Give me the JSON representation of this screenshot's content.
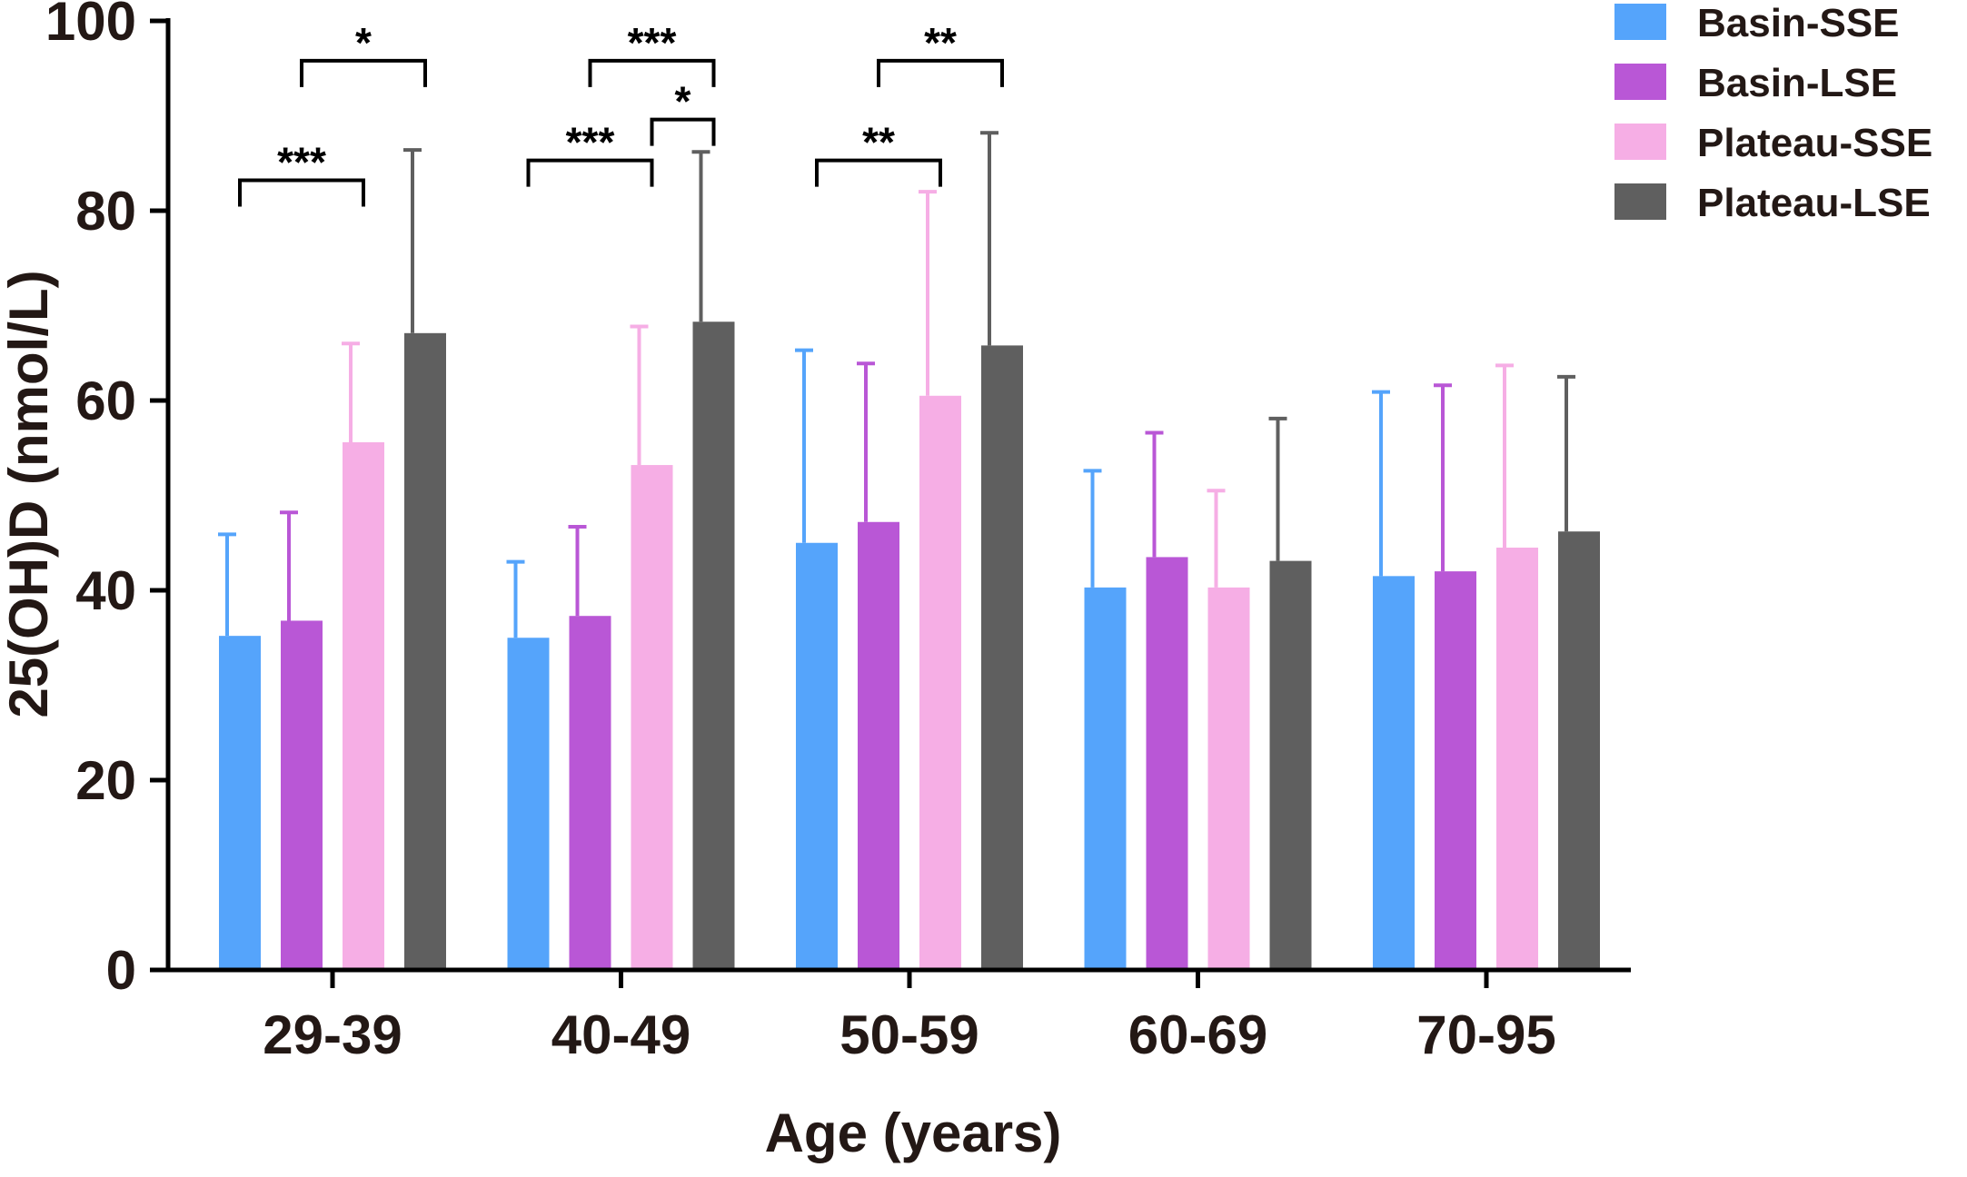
{
  "chart_data": {
    "type": "bar",
    "title": "",
    "xlabel": "Age (years)",
    "ylabel": "25(OH)D (nmol/L)",
    "ylim": [
      0,
      100
    ],
    "yticks": [
      "0",
      "20",
      "40",
      "60",
      "80",
      "100"
    ],
    "categories": [
      "29-39",
      "40-49",
      "50-59",
      "60-69",
      "70-95"
    ],
    "series": [
      {
        "name": "Basin-SSE",
        "color": "#55a4fb",
        "values": [
          35.2,
          35.0,
          45.0,
          40.3,
          41.5
        ],
        "errors": [
          10.7,
          8.0,
          20.3,
          12.3,
          19.4
        ]
      },
      {
        "name": "Basin-LSE",
        "color": "#b957d6",
        "values": [
          36.8,
          37.3,
          47.2,
          43.5,
          42.0
        ],
        "errors": [
          11.4,
          9.4,
          16.7,
          13.1,
          19.6
        ]
      },
      {
        "name": "Plateau-SSE",
        "color": "#f6aee5",
        "values": [
          55.6,
          53.2,
          60.5,
          40.3,
          44.5
        ],
        "errors": [
          10.4,
          14.6,
          21.5,
          10.2,
          19.2
        ]
      },
      {
        "name": "Plateau-LSE",
        "color": "#5f5f5f",
        "values": [
          67.1,
          68.3,
          65.8,
          43.1,
          46.2
        ],
        "errors": [
          19.3,
          17.9,
          22.4,
          15.0,
          16.3
        ]
      }
    ],
    "significance": [
      {
        "group": 0,
        "from": 0,
        "to": 2,
        "level": 83.2,
        "label": "***"
      },
      {
        "group": 0,
        "from": 1,
        "to": 3,
        "level": 95.8,
        "label": "*"
      },
      {
        "group": 1,
        "from": 0,
        "to": 2,
        "level": 85.3,
        "label": "***"
      },
      {
        "group": 1,
        "from": 2,
        "to": 3,
        "level": 89.6,
        "label": "*"
      },
      {
        "group": 1,
        "from": 1,
        "to": 3,
        "level": 95.8,
        "label": "***"
      },
      {
        "group": 2,
        "from": 0,
        "to": 2,
        "level": 85.3,
        "label": "**"
      },
      {
        "group": 2,
        "from": 1,
        "to": 3,
        "level": 95.8,
        "label": "**"
      }
    ],
    "legend_position": "top-right"
  }
}
